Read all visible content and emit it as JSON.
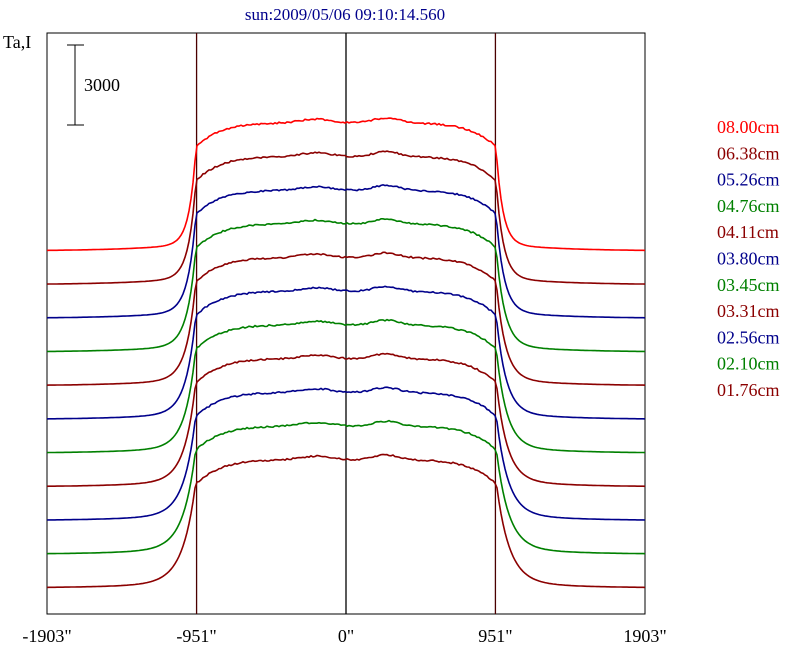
{
  "chart_data": {
    "type": "line",
    "title": "sun:2009/05/06 09:10:14.560",
    "ylabel": "Ta,I",
    "scale_bar_label": "3000",
    "x_range": [
      -1903,
      1903
    ],
    "xticks": [
      {
        "value": -1903,
        "label": "-1903\""
      },
      {
        "value": -951,
        "label": "-951\""
      },
      {
        "value": 0,
        "label": "0\""
      },
      {
        "value": 951,
        "label": "951\""
      },
      {
        "value": 1903,
        "label": "1903\""
      }
    ],
    "vertical_lines": [
      -951,
      0,
      951
    ],
    "profile_shape": "solar-disk brightness scans, flat-top with steep limbs at ±951\"",
    "series": [
      {
        "name": "08.00cm",
        "color": "#ff0000",
        "legend": true
      },
      {
        "name": "06.38cm",
        "color": "#8b0000",
        "legend": true
      },
      {
        "name": "05.26cm",
        "color": "#00008b",
        "legend": true
      },
      {
        "name": "04.76cm",
        "color": "#008000",
        "legend": true
      },
      {
        "name": "04.11cm",
        "color": "#8b0000",
        "legend": true
      },
      {
        "name": "03.80cm",
        "color": "#00008b",
        "legend": true
      },
      {
        "name": "03.45cm",
        "color": "#008000",
        "legend": true
      },
      {
        "name": "03.31cm",
        "color": "#8b0000",
        "legend": true
      },
      {
        "name": "02.56cm",
        "color": "#00008b",
        "legend": true
      },
      {
        "name": "02.10cm",
        "color": "#008000",
        "legend": true
      },
      {
        "name": "01.76cm",
        "color": "#8b0000",
        "legend": true
      }
    ]
  },
  "colors": {
    "axis": "#000000",
    "center_line": "#000000",
    "limb_line": "#4a0000"
  }
}
